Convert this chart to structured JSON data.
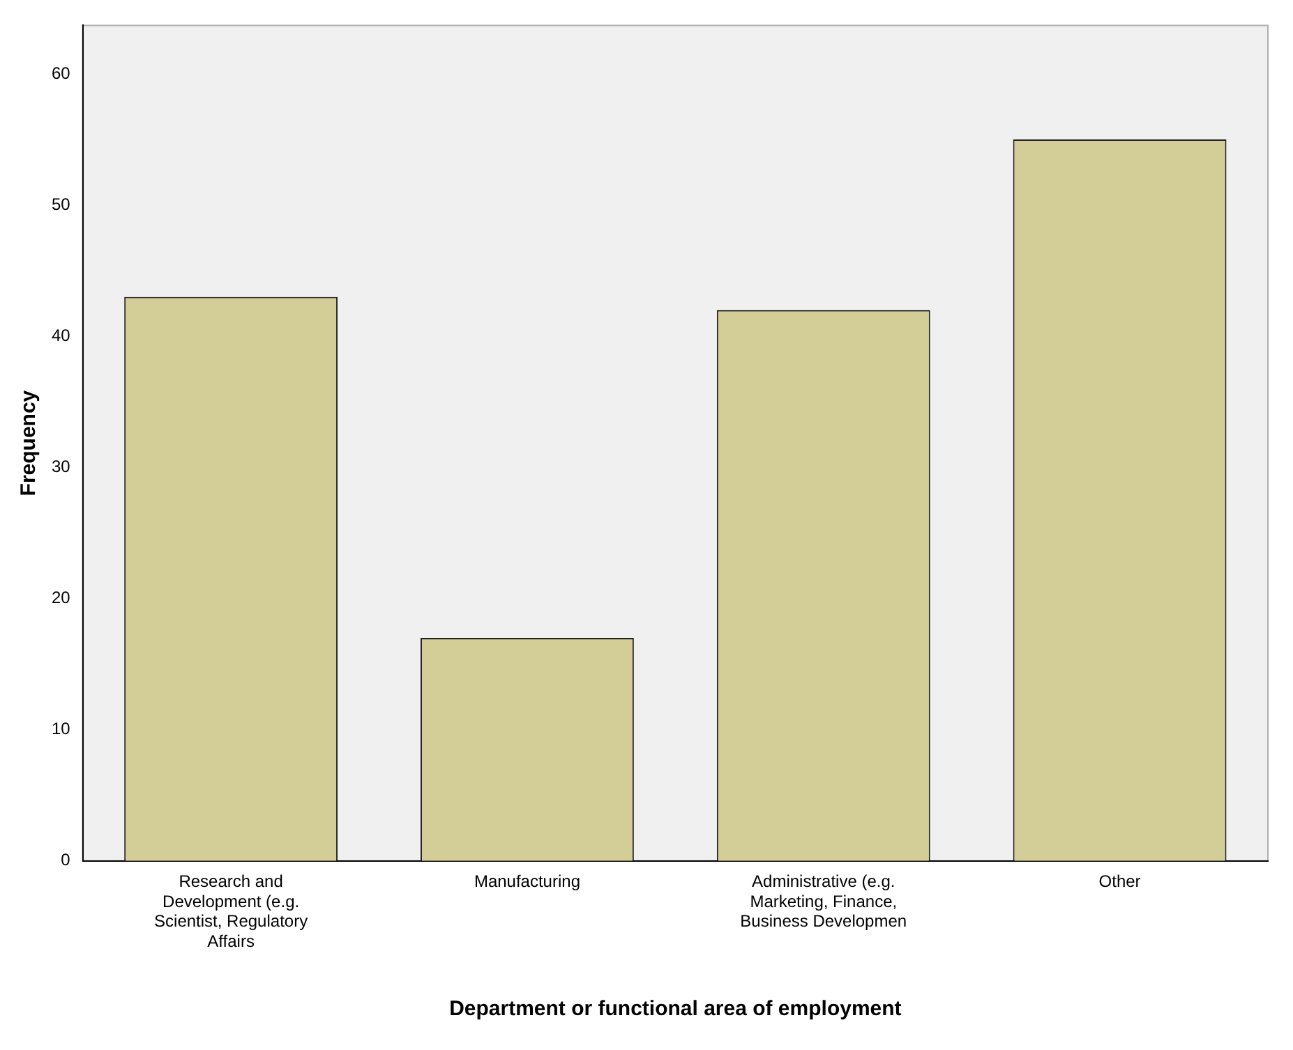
{
  "chart_data": {
    "type": "bar",
    "xlabel": "Department or functional area of employment",
    "ylabel": "Frequency",
    "categories": [
      "Research and Development (e.g. Scientist, Regulatory Affairs",
      "Manufacturing",
      "Administrative (e.g. Marketing, Finance, Business Developmen",
      "Other"
    ],
    "values": [
      43,
      17,
      42,
      55
    ],
    "color": "#d3ce97",
    "ylim": [
      0,
      63.7
    ],
    "yticks": [
      0,
      10,
      20,
      30,
      40,
      50,
      60
    ],
    "grid": false,
    "legend": false
  }
}
